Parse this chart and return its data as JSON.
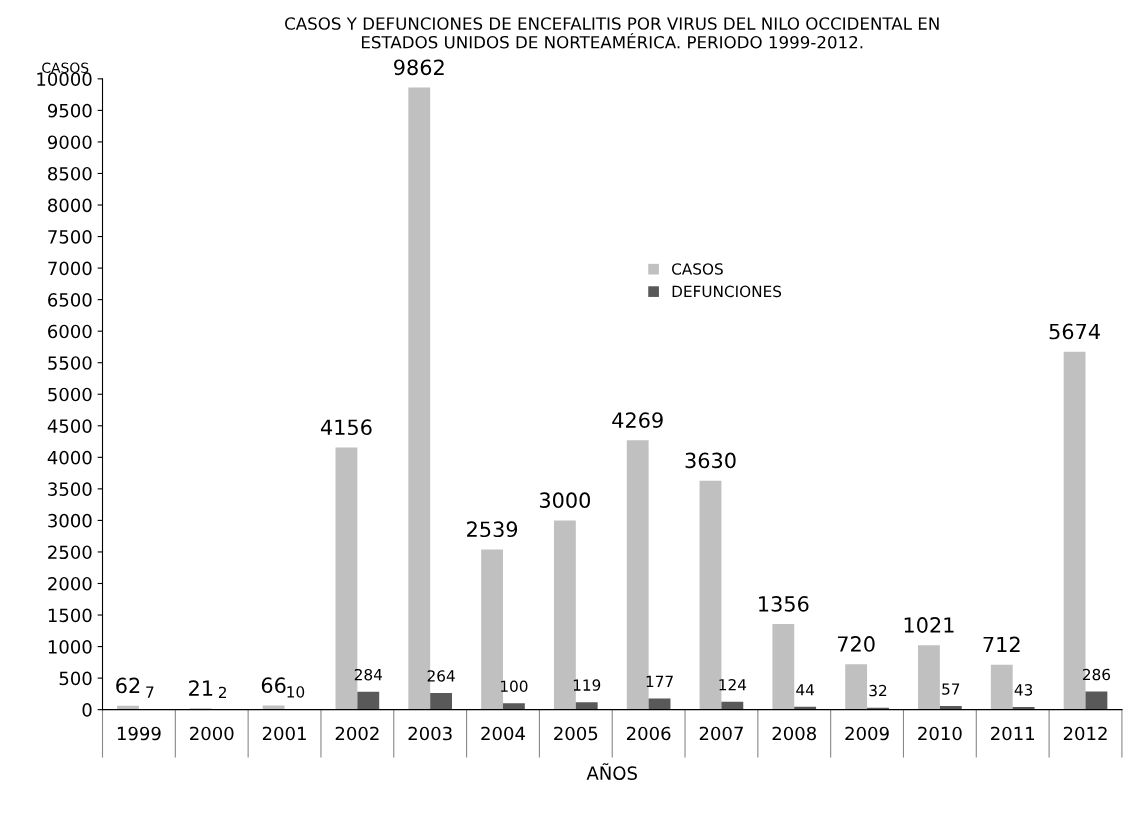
{
  "chart_data": {
    "type": "bar",
    "title": "CASOS Y DEFUNCIONES DE ENCEFALITIS POR VIRUS DEL NILO OCCIDENTAL EN\nESTADOS UNIDOS DE NORTEAMÉRICA. PERIODO 1999-2012.",
    "ylabel": "CASOS",
    "xlabel": "AÑOS",
    "categories": [
      "1999",
      "2000",
      "2001",
      "2002",
      "2003",
      "2004",
      "2005",
      "2006",
      "2007",
      "2008",
      "2009",
      "2010",
      "2011",
      "2012"
    ],
    "series": [
      {
        "name": "CASOS",
        "color": "#c0c0c0",
        "values": [
          62,
          21,
          66,
          4156,
          9862,
          2539,
          3000,
          4269,
          3630,
          1356,
          720,
          1021,
          712,
          5674
        ]
      },
      {
        "name": "DEFUNCIONES",
        "color": "#595959",
        "values": [
          7,
          2,
          10,
          284,
          264,
          100,
          119,
          177,
          124,
          44,
          32,
          57,
          43,
          286
        ]
      }
    ],
    "ylim": [
      0,
      10000
    ],
    "yticks": [
      0,
      500,
      1000,
      1500,
      2000,
      2500,
      3000,
      3500,
      4000,
      4500,
      5000,
      5500,
      6000,
      6500,
      7000,
      7500,
      8000,
      8500,
      9000,
      9500,
      10000
    ],
    "data_labels": true,
    "legend": "top",
    "grid": false
  }
}
